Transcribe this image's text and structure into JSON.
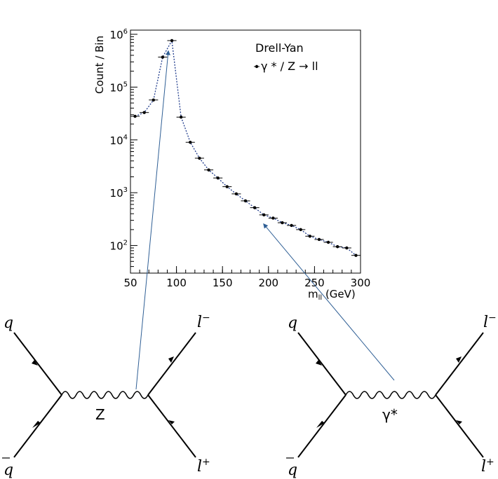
{
  "chart_data": {
    "type": "scatter",
    "legend_title": "Drell-Yan",
    "series": [
      {
        "name": "γ * / Z → ll",
        "x": [
          55,
          65,
          75,
          85,
          95,
          105,
          115,
          125,
          135,
          145,
          155,
          165,
          175,
          185,
          195,
          205,
          215,
          225,
          235,
          245,
          255,
          265,
          275,
          285,
          295
        ],
        "y": [
          28000,
          33000,
          57000,
          370000,
          760000,
          27000,
          9000,
          4500,
          2700,
          1900,
          1300,
          950,
          700,
          520,
          380,
          330,
          270,
          240,
          200,
          150,
          130,
          115,
          95,
          90,
          65
        ],
        "marker": "filled-circle",
        "xerr": 5,
        "connector": "dotted"
      }
    ],
    "ylabel": "Count / Bin",
    "xlabel_main": "m",
    "xlabel_sub": "ll",
    "xlabel_unit": " (GeV)",
    "xlim": [
      50,
      300
    ],
    "ylim": [
      30,
      1200000
    ],
    "yscale": "log",
    "xticks": [
      "50",
      "100",
      "150",
      "200",
      "250",
      "300"
    ],
    "yticks": [
      {
        "base": "10",
        "exp": "2",
        "value": 100
      },
      {
        "base": "10",
        "exp": "3",
        "value": 1000
      },
      {
        "base": "10",
        "exp": "4",
        "value": 10000
      },
      {
        "base": "10",
        "exp": "5",
        "value": 100000
      },
      {
        "base": "10",
        "exp": "6",
        "value": 1000000
      }
    ],
    "grid": false,
    "legend_position": "top-right",
    "colors": {
      "markers": "#000000",
      "connector": "#1f3b8c"
    }
  },
  "diagrams": {
    "left": {
      "in_quark": "q",
      "in_antiquark": "q",
      "out_lepton_minus": {
        "base": "l",
        "sup": "−"
      },
      "out_lepton_plus": {
        "base": "l",
        "sup": "+"
      },
      "boson": "Z"
    },
    "right": {
      "in_quark": "q",
      "in_antiquark": "q",
      "out_lepton_minus": {
        "base": "l",
        "sup": "−"
      },
      "out_lepton_plus": {
        "base": "l",
        "sup": "+"
      },
      "boson": "γ*"
    }
  },
  "annotations": {
    "arrow_color": "#2f5f95"
  }
}
